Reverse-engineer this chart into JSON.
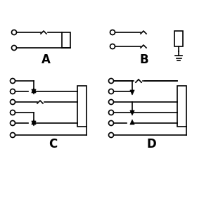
{
  "bg": "#ffffff",
  "lw": 1.2,
  "circle_r": 3.5,
  "labels": [
    "A",
    "B",
    "C",
    "D"
  ]
}
